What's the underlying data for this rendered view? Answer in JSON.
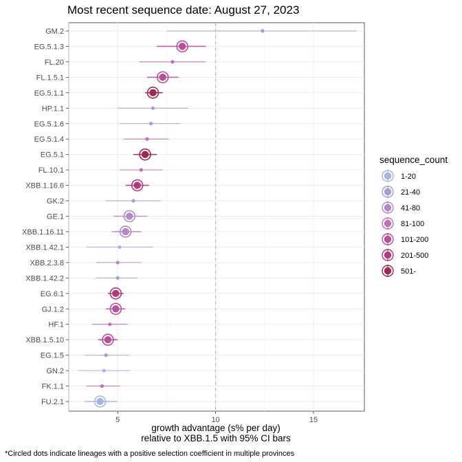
{
  "title": "Most recent sequence date: August 27, 2023",
  "footnote": "*Circled dots indicate lineages with a positive selection coefficient in multiple provinces",
  "chart_data": {
    "type": "scatter",
    "title": "Most recent sequence date: August 27, 2023",
    "xlabel_line1": "growth advantage (s% per day)",
    "xlabel_line2": "relative to  XBB.1.5  with 95% CI bars",
    "xlim": [
      2.5,
      17.6
    ],
    "xticks": [
      5,
      10,
      15
    ],
    "reference_line_x": 10,
    "grid": true,
    "legend": {
      "title": "sequence_count",
      "placement": "right",
      "entries": [
        {
          "label": "1-20",
          "color": "#aab4e0"
        },
        {
          "label": "21-40",
          "color": "#a99bd6"
        },
        {
          "label": "41-80",
          "color": "#b489c9"
        },
        {
          "label": "81-100",
          "color": "#bf6fb6"
        },
        {
          "label": "101-200",
          "color": "#b84f98"
        },
        {
          "label": "201-500",
          "color": "#b23a78"
        },
        {
          "label": "501-",
          "color": "#a0284e"
        }
      ]
    },
    "points": [
      {
        "label": "GM.2",
        "x": 12.4,
        "lo": 7.5,
        "hi": 17.2,
        "count": "21-40",
        "circled": false
      },
      {
        "label": "EG.5.1.3",
        "x": 8.3,
        "lo": 7.0,
        "hi": 9.5,
        "count": "101-200",
        "circled": true
      },
      {
        "label": "FL.20",
        "x": 7.8,
        "lo": 6.1,
        "hi": 9.5,
        "count": "81-100",
        "circled": false
      },
      {
        "label": "FL.1.5.1",
        "x": 7.3,
        "lo": 6.5,
        "hi": 8.1,
        "count": "101-200",
        "circled": true
      },
      {
        "label": "EG.5.1.1",
        "x": 6.8,
        "lo": 6.4,
        "hi": 7.3,
        "count": "501-",
        "circled": true
      },
      {
        "label": "HP.1.1",
        "x": 6.8,
        "lo": 5.0,
        "hi": 8.6,
        "count": "21-40",
        "circled": false
      },
      {
        "label": "EG.5.1.6",
        "x": 6.7,
        "lo": 5.1,
        "hi": 8.2,
        "count": "21-40",
        "circled": false
      },
      {
        "label": "EG.5.1.4",
        "x": 6.5,
        "lo": 5.3,
        "hi": 7.6,
        "count": "81-100",
        "circled": false
      },
      {
        "label": "EG.5.1",
        "x": 6.4,
        "lo": 5.8,
        "hi": 7.0,
        "count": "501-",
        "circled": true
      },
      {
        "label": "FL.10.1",
        "x": 6.2,
        "lo": 5.1,
        "hi": 7.3,
        "count": "81-100",
        "circled": false
      },
      {
        "label": "XBB.1.16.6",
        "x": 6.0,
        "lo": 5.4,
        "hi": 6.6,
        "count": "201-500",
        "circled": true
      },
      {
        "label": "GK.2",
        "x": 5.8,
        "lo": 4.4,
        "hi": 7.2,
        "count": "21-40",
        "circled": false
      },
      {
        "label": "GE.1",
        "x": 5.6,
        "lo": 4.8,
        "hi": 6.5,
        "count": "41-80",
        "circled": true
      },
      {
        "label": "XBB.1.16.11",
        "x": 5.4,
        "lo": 4.7,
        "hi": 6.2,
        "count": "41-80",
        "circled": true
      },
      {
        "label": "XBB.1.42.1",
        "x": 5.1,
        "lo": 3.4,
        "hi": 6.8,
        "count": "1-20",
        "circled": false
      },
      {
        "label": "XBB.2.3.8",
        "x": 5.0,
        "lo": 3.9,
        "hi": 6.2,
        "count": "41-80",
        "circled": false
      },
      {
        "label": "XBB.1.42.2",
        "x": 5.0,
        "lo": 3.9,
        "hi": 6.0,
        "count": "21-40",
        "circled": false
      },
      {
        "label": "EG.6.1",
        "x": 4.9,
        "lo": 4.5,
        "hi": 5.3,
        "count": "201-500",
        "circled": true
      },
      {
        "label": "GJ.1.2",
        "x": 4.9,
        "lo": 4.4,
        "hi": 5.4,
        "count": "101-200",
        "circled": true
      },
      {
        "label": "HF.1",
        "x": 4.6,
        "lo": 3.7,
        "hi": 5.5,
        "count": "81-100",
        "circled": false
      },
      {
        "label": "XBB.1.5.10",
        "x": 4.5,
        "lo": 4.0,
        "hi": 5.0,
        "count": "101-200",
        "circled": true
      },
      {
        "label": "EG.1.5",
        "x": 4.4,
        "lo": 3.3,
        "hi": 5.6,
        "count": "21-40",
        "circled": false
      },
      {
        "label": "GN.2",
        "x": 4.3,
        "lo": 3.0,
        "hi": 5.6,
        "count": "1-20",
        "circled": false
      },
      {
        "label": "FK.1.1",
        "x": 4.2,
        "lo": 3.4,
        "hi": 5.1,
        "count": "81-100",
        "circled": false
      },
      {
        "label": "FU.2.1",
        "x": 4.1,
        "lo": 3.3,
        "hi": 5.0,
        "count": "1-20",
        "circled": true
      }
    ]
  }
}
